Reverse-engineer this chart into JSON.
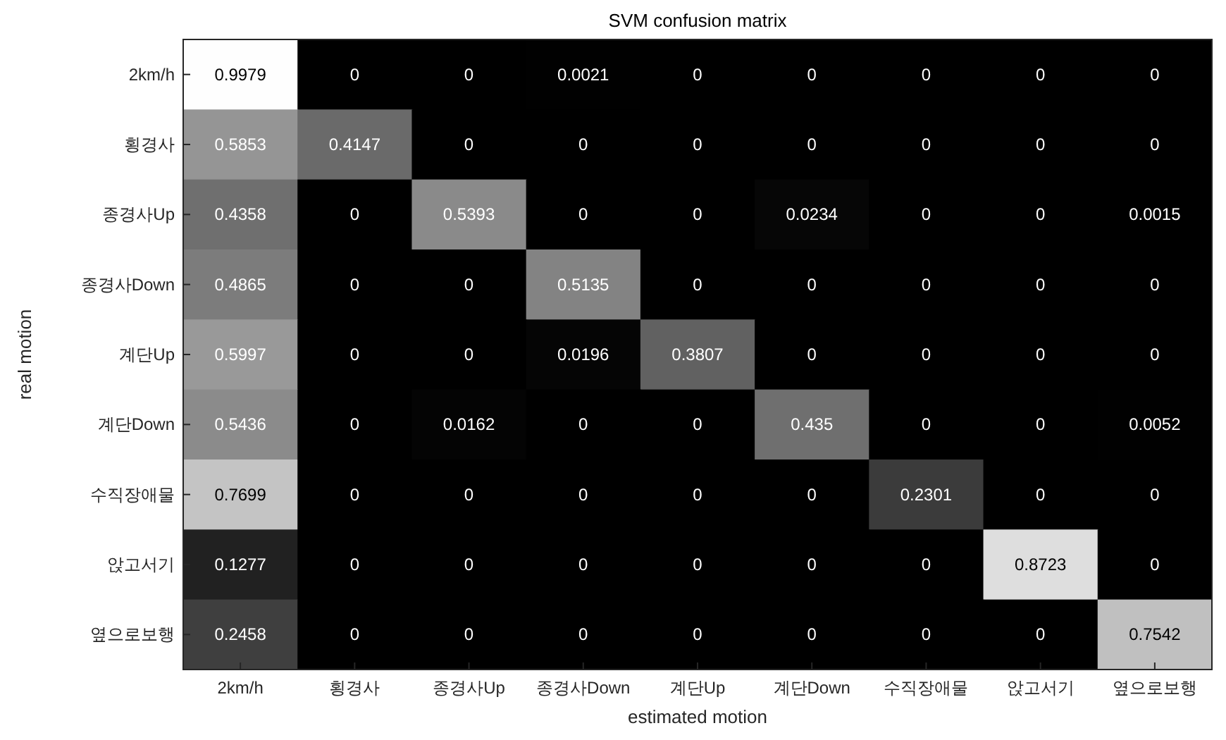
{
  "chart_data": {
    "type": "heatmap",
    "title": "SVM confusion matrix",
    "xlabel": "estimated motion",
    "data_labels": true,
    "ylabel": "real motion",
    "categories": [
      "2km/h",
      "횡경사",
      "종경사Up",
      "종경사Down",
      "계단Up",
      "계단Down",
      "수직장애물",
      "앉고서기",
      "옆으로보행"
    ],
    "y_categories": [
      "2km/h",
      "횡경사",
      "종경사Up",
      "종경사Down",
      "계단Up",
      "계단Down",
      "수직장애물",
      "앉고서기",
      "옆으로보행"
    ],
    "cells": [
      [
        0.9979,
        0,
        0,
        0.0021,
        0,
        0,
        0,
        0,
        0
      ],
      [
        0.5853,
        0.4147,
        0,
        0,
        0,
        0,
        0,
        0,
        0
      ],
      [
        0.4358,
        0,
        0.5393,
        0,
        0,
        0.0234,
        0,
        0,
        0.0015
      ],
      [
        0.4865,
        0,
        0,
        0.5135,
        0,
        0,
        0,
        0,
        0
      ],
      [
        0.5997,
        0,
        0,
        0.0196,
        0.3807,
        0,
        0,
        0,
        0
      ],
      [
        0.5436,
        0,
        0.0162,
        0,
        0,
        0.435,
        0,
        0,
        0.0052
      ],
      [
        0.7699,
        0,
        0,
        0,
        0,
        0,
        0.2301,
        0,
        0
      ],
      [
        0.1277,
        0,
        0,
        0,
        0,
        0,
        0,
        0.8723,
        0
      ],
      [
        0.2458,
        0,
        0,
        0,
        0,
        0,
        0,
        0,
        0.7542
      ]
    ]
  }
}
